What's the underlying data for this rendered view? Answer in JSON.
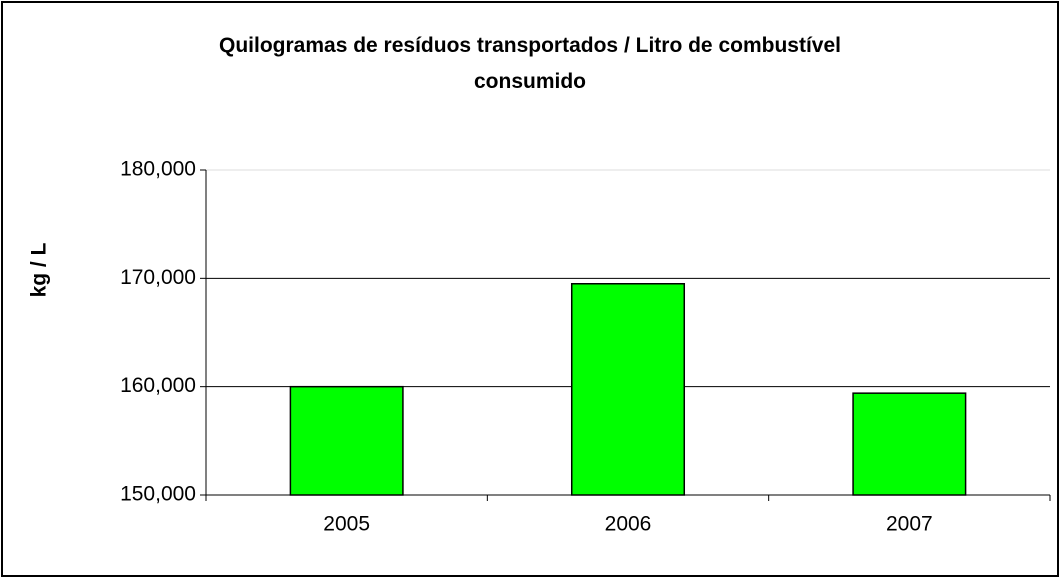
{
  "chart_data": {
    "type": "bar",
    "title": "Quilogramas de resíduos transportados / Litro de combustível consumido",
    "y_label": "kg / L",
    "categories": [
      "2005",
      "2006",
      "2007"
    ],
    "values": [
      160.0,
      169.5,
      159.4
    ],
    "color": "#00ff00",
    "ylim": [
      150,
      180
    ],
    "yticks": [
      {
        "value": 150,
        "label": "150,000"
      },
      {
        "value": 160,
        "label": "160,000"
      },
      {
        "value": 170,
        "label": "170,000"
      },
      {
        "value": 180,
        "label": "180,000"
      }
    ],
    "grid": true
  }
}
